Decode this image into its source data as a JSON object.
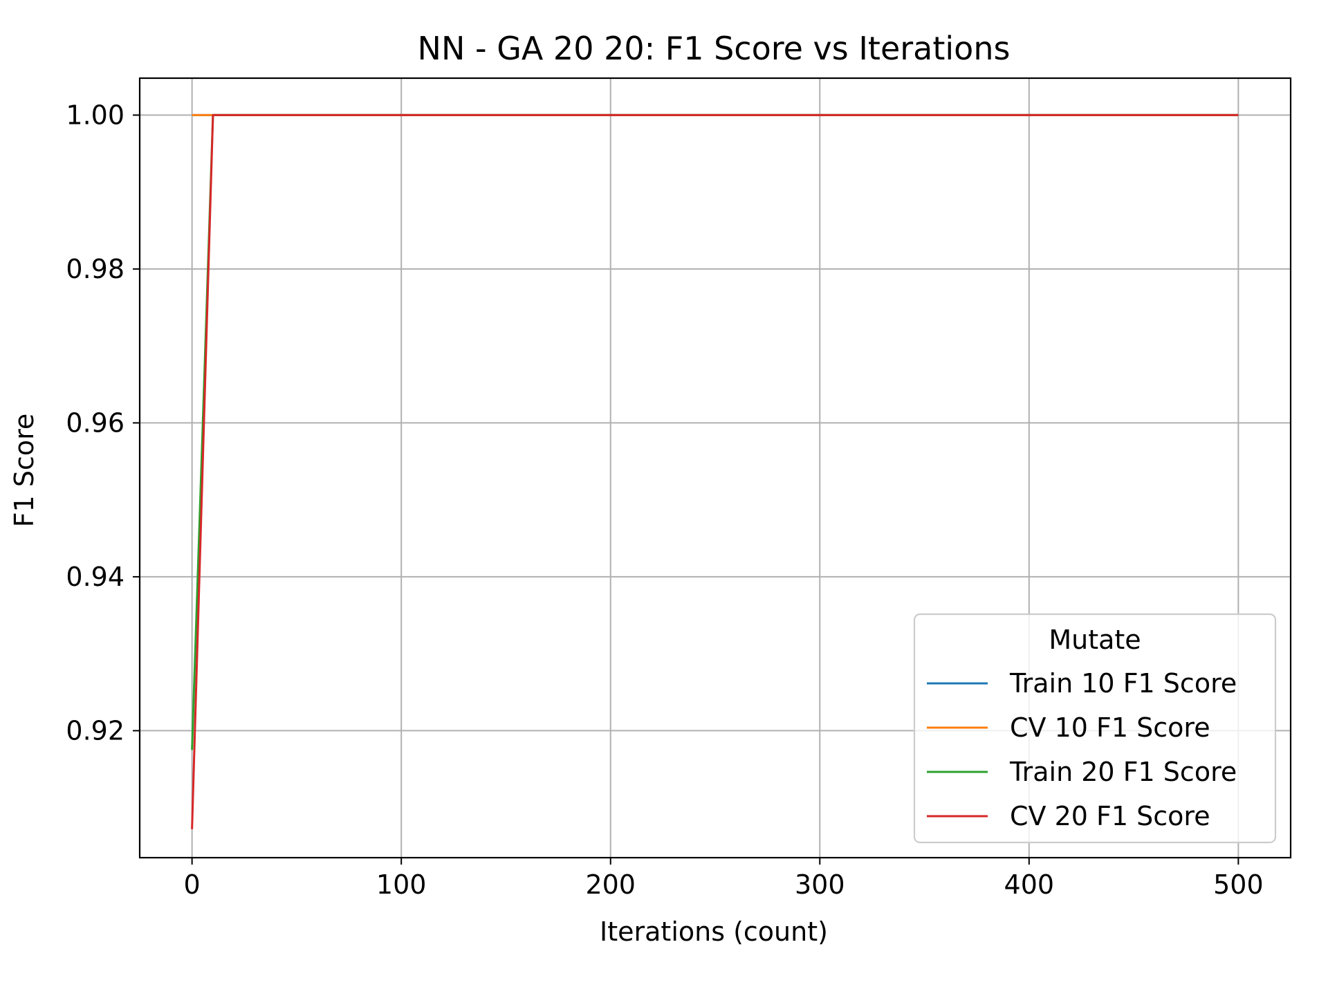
{
  "chart_data": {
    "type": "line",
    "title": "NN - GA 20 20: F1 Score vs Iterations",
    "xlabel": "Iterations (count)",
    "ylabel": "F1 Score",
    "xlim": [
      -25,
      525
    ],
    "ylim": [
      0.9035,
      1.0048
    ],
    "xticks": [
      0,
      100,
      200,
      300,
      400,
      500
    ],
    "xtick_labels": [
      "0",
      "100",
      "200",
      "300",
      "400",
      "500"
    ],
    "yticks": [
      0.92,
      0.94,
      0.96,
      0.98,
      1.0
    ],
    "ytick_labels": [
      "0.92",
      "0.94",
      "0.96",
      "0.98",
      "1.00"
    ],
    "grid": true,
    "legend": {
      "title": "Mutate",
      "placement": "lower-right"
    },
    "series": [
      {
        "name": "Train 10 F1 Score",
        "color": "#1f77b4",
        "x": [
          0,
          10,
          20,
          30,
          40,
          50,
          60,
          70,
          80,
          90,
          100,
          150,
          200,
          250,
          300,
          350,
          400,
          450,
          500
        ],
        "y": [
          1.0,
          1.0,
          1.0,
          1.0,
          1.0,
          1.0,
          1.0,
          1.0,
          1.0,
          1.0,
          1.0,
          1.0,
          1.0,
          1.0,
          1.0,
          1.0,
          1.0,
          1.0,
          1.0
        ]
      },
      {
        "name": "CV 10 F1 Score",
        "color": "#ff7f0e",
        "x": [
          0,
          10,
          20,
          30,
          40,
          50,
          60,
          70,
          80,
          90,
          100,
          150,
          200,
          250,
          300,
          350,
          400,
          450,
          500
        ],
        "y": [
          1.0,
          1.0,
          1.0,
          1.0,
          1.0,
          1.0,
          1.0,
          1.0,
          1.0,
          1.0,
          1.0,
          1.0,
          1.0,
          1.0,
          1.0,
          1.0,
          1.0,
          1.0,
          1.0
        ]
      },
      {
        "name": "Train 20 F1 Score",
        "color": "#2ca02c",
        "x": [
          0,
          10,
          20,
          30,
          40,
          50,
          60,
          70,
          80,
          90,
          100,
          150,
          200,
          250,
          300,
          350,
          400,
          450,
          500
        ],
        "y": [
          0.9175,
          1.0,
          1.0,
          1.0,
          1.0,
          1.0,
          1.0,
          1.0,
          1.0,
          1.0,
          1.0,
          1.0,
          1.0,
          1.0,
          1.0,
          1.0,
          1.0,
          1.0,
          1.0
        ]
      },
      {
        "name": "CV 20 F1 Score",
        "color": "#d62728",
        "x": [
          0,
          10,
          20,
          30,
          40,
          50,
          60,
          70,
          80,
          90,
          100,
          150,
          200,
          250,
          300,
          350,
          400,
          450,
          500
        ],
        "y": [
          0.9072,
          1.0,
          1.0,
          1.0,
          1.0,
          1.0,
          1.0,
          1.0,
          1.0,
          1.0,
          1.0,
          1.0,
          1.0,
          1.0,
          1.0,
          1.0,
          1.0,
          1.0,
          1.0
        ]
      }
    ]
  }
}
